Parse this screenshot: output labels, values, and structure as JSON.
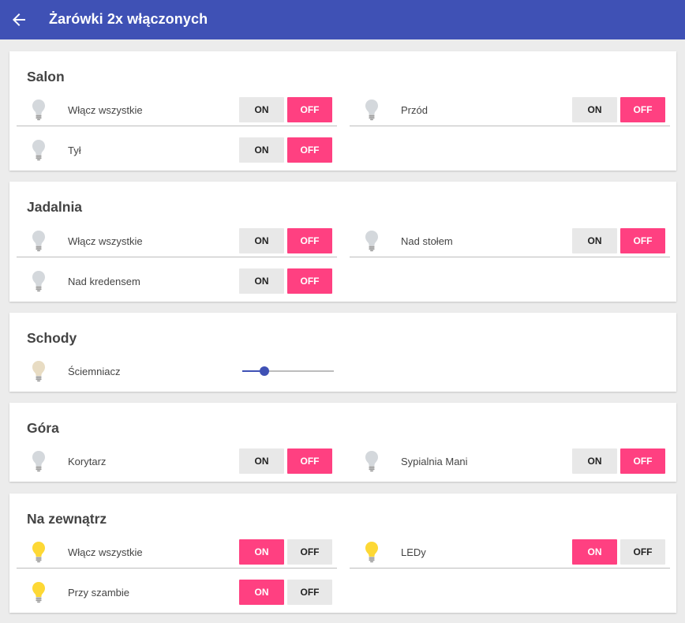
{
  "header": {
    "back_icon": "arrow-left-icon",
    "title": "Żarówki 2x włączonych"
  },
  "colors": {
    "primary": "#3f51b5",
    "accent": "#ff4081",
    "bulb_off": "#d4d8dc",
    "bulb_on": "#fdd835",
    "bulb_dimmer": "#e8dcc3"
  },
  "rooms": {
    "salon": {
      "title": "Salon",
      "items": [
        {
          "label": "Włącz wszystkie",
          "state": "off",
          "on_label": "ON",
          "off_label": "OFF"
        },
        {
          "label": "Przód",
          "state": "off",
          "on_label": "ON",
          "off_label": "OFF"
        },
        {
          "label": "Tył",
          "state": "off",
          "on_label": "ON",
          "off_label": "OFF"
        }
      ]
    },
    "jadalnia": {
      "title": "Jadalnia",
      "items": [
        {
          "label": "Włącz wszystkie",
          "state": "off",
          "on_label": "ON",
          "off_label": "OFF"
        },
        {
          "label": "Nad stołem",
          "state": "off",
          "on_label": "ON",
          "off_label": "OFF"
        },
        {
          "label": "Nad kredensem",
          "state": "off",
          "on_label": "ON",
          "off_label": "OFF"
        }
      ]
    },
    "schody": {
      "title": "Schody",
      "items": [
        {
          "label": "Ściemniacz",
          "type": "slider",
          "level_fraction": 0.24
        }
      ]
    },
    "gora": {
      "title": "Góra",
      "items": [
        {
          "label": "Korytarz",
          "state": "off",
          "on_label": "ON",
          "off_label": "OFF"
        },
        {
          "label": "Sypialnia Mani",
          "state": "off",
          "on_label": "ON",
          "off_label": "OFF"
        }
      ]
    },
    "zewnatrz": {
      "title": "Na zewnątrz",
      "items": [
        {
          "label": "Włącz wszystkie",
          "state": "on",
          "on_label": "ON",
          "off_label": "OFF"
        },
        {
          "label": "LEDy",
          "state": "on",
          "on_label": "ON",
          "off_label": "OFF"
        },
        {
          "label": "Przy szambie",
          "state": "on",
          "on_label": "ON",
          "off_label": "OFF"
        }
      ]
    }
  }
}
